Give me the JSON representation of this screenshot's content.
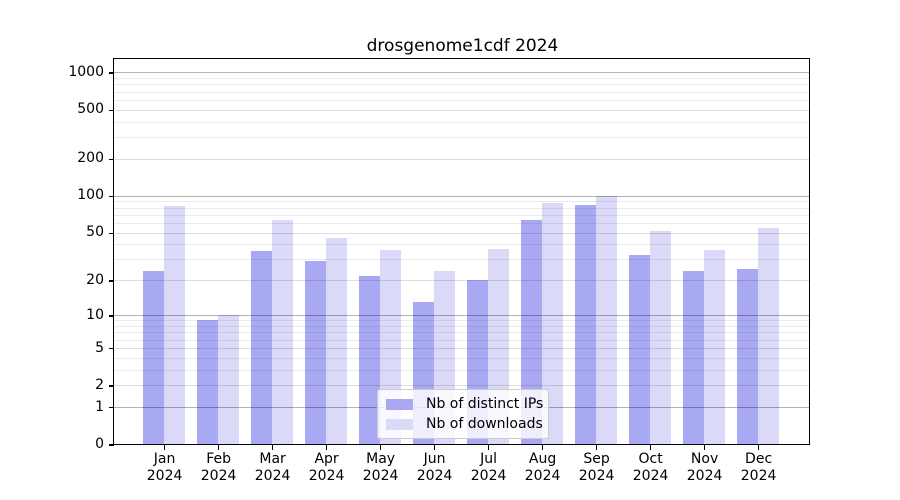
{
  "chart_data": {
    "type": "bar",
    "title": "drosgenome1cdf 2024",
    "categories": [
      "Jan",
      "Feb",
      "Mar",
      "Apr",
      "May",
      "Jun",
      "Jul",
      "Aug",
      "Sep",
      "Oct",
      "Nov",
      "Dec"
    ],
    "year_label": "2024",
    "series": [
      {
        "name": "Nb of distinct IPs",
        "color": "#a9a9f3",
        "values": [
          24,
          9,
          35,
          29,
          22,
          13,
          20,
          63,
          84,
          33,
          24,
          25
        ]
      },
      {
        "name": "Nb of downloads",
        "color": "#dadaf8",
        "values": [
          83,
          10,
          64,
          45,
          36,
          24,
          37,
          87,
          100,
          52,
          36,
          55
        ]
      }
    ],
    "xlabel": "",
    "ylabel": "",
    "yticks": [
      0,
      1,
      2,
      5,
      10,
      20,
      50,
      100,
      200,
      500,
      1000
    ],
    "scale": "log1p",
    "ylim": [
      0,
      1272
    ],
    "grid": true,
    "legend_position": "lower center",
    "colors": {
      "major_grid": "#b3b3b3",
      "minor_grid": "#eaeaea",
      "axis": "#000000",
      "background": "#ffffff"
    }
  }
}
